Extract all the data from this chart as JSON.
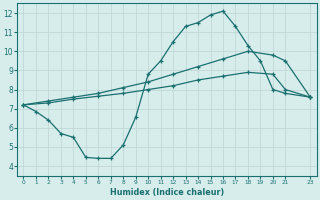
{
  "xlabel": "Humidex (Indice chaleur)",
  "xlim": [
    -0.5,
    23.5
  ],
  "ylim": [
    3.5,
    12.5
  ],
  "yticks": [
    4,
    5,
    6,
    7,
    8,
    9,
    10,
    11,
    12
  ],
  "xticks": [
    0,
    1,
    2,
    3,
    4,
    5,
    6,
    7,
    8,
    9,
    10,
    11,
    12,
    13,
    14,
    15,
    16,
    17,
    18,
    19,
    20,
    21,
    23
  ],
  "bg_color": "#d7edec",
  "grid_color": "#c2d8d6",
  "line_color": "#1a7070",
  "line1_x": [
    0,
    1,
    2,
    3,
    4,
    5,
    6,
    7,
    8,
    9,
    10,
    11,
    12,
    13,
    14,
    15,
    16,
    17,
    18,
    19,
    20,
    21,
    23
  ],
  "line1_y": [
    7.2,
    6.85,
    6.4,
    5.7,
    5.5,
    4.45,
    4.4,
    4.4,
    5.1,
    6.55,
    8.8,
    9.5,
    10.5,
    11.3,
    11.5,
    11.9,
    12.1,
    11.3,
    10.3,
    9.5,
    8.0,
    7.8,
    7.6
  ],
  "line2_x": [
    0,
    2,
    4,
    6,
    8,
    10,
    12,
    14,
    16,
    18,
    20,
    21,
    23
  ],
  "line2_y": [
    7.2,
    7.4,
    7.6,
    7.8,
    8.1,
    8.4,
    8.8,
    9.2,
    9.6,
    10.0,
    9.8,
    9.5,
    7.6
  ],
  "line3_x": [
    0,
    2,
    4,
    6,
    8,
    10,
    12,
    14,
    16,
    18,
    20,
    21,
    23
  ],
  "line3_y": [
    7.2,
    7.3,
    7.5,
    7.65,
    7.8,
    8.0,
    8.2,
    8.5,
    8.7,
    8.9,
    8.8,
    8.0,
    7.6
  ]
}
